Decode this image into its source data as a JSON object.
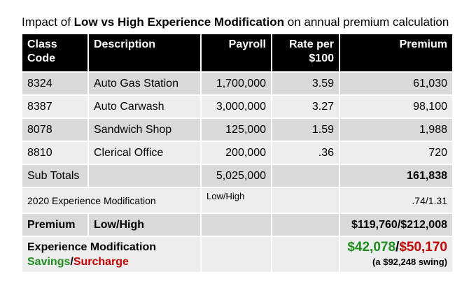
{
  "title": {
    "prefix": "Impact of ",
    "bold": "Low vs High Experience Modification",
    "suffix": " on annual premium calculation"
  },
  "headers": {
    "class_code_1": "Class",
    "class_code_2": "Code",
    "description": "Description",
    "payroll": "Payroll",
    "rate_1": "Rate per",
    "rate_2": "$100",
    "premium": "Premium"
  },
  "rows": [
    {
      "code": "8324",
      "description": "Auto Gas Station",
      "payroll": "1,700,000",
      "rate": "3.59",
      "premium": "61,030"
    },
    {
      "code": "8387",
      "description": "Auto Carwash",
      "payroll": "3,000,000",
      "rate": "3.27",
      "premium": "98,100"
    },
    {
      "code": "8078",
      "description": "Sandwich Shop",
      "payroll": "125,000",
      "rate": "1.59",
      "premium": "1,988"
    },
    {
      "code": "8810",
      "description": "Clerical Office",
      "payroll": "200,000",
      "rate": ".36",
      "premium": "720"
    }
  ],
  "subtotals": {
    "label": "Sub Totals",
    "payroll": "5,025,000",
    "premium": "161,838"
  },
  "exp_mod": {
    "label": "2020 Experience Modification",
    "type": "Low/High",
    "value": ".74/1.31"
  },
  "premium_row": {
    "label": "Premium",
    "type": "Low/High",
    "value": "$119,760/$212,008"
  },
  "savings": {
    "label": "Experience Modification",
    "savings_word": "Savings",
    "slash": "/",
    "surcharge_word": "Surcharge",
    "savings_value": "$42,078",
    "slash_value": "/",
    "surcharge_value": "$50,170",
    "swing": "(a $92,248 swing)"
  },
  "colors": {
    "savings": "#1e8c1e",
    "surcharge": "#c00000",
    "header_bg": "#000000"
  }
}
